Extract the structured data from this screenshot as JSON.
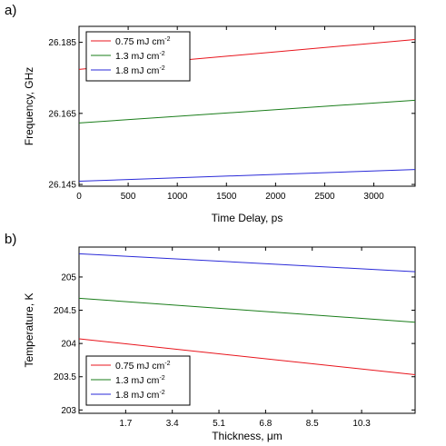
{
  "chart_data": [
    {
      "panel_label": "a)",
      "type": "line",
      "xlabel": "Time Delay, ps",
      "ylabel": "Frequency, GHz",
      "xlim": [
        0,
        3420
      ],
      "ylim": [
        26.1445,
        26.1895
      ],
      "x_ticks": [
        0,
        500,
        1000,
        1500,
        2000,
        2500,
        3000
      ],
      "x_tick_labels": [
        "0",
        "500",
        "1000",
        "1500",
        "2000",
        "2500",
        "3000"
      ],
      "y_ticks": [
        26.145,
        26.165,
        26.185
      ],
      "y_tick_labels": [
        "26.145",
        "26.165",
        "26.185"
      ],
      "grid": false,
      "legend_position": "top-left",
      "series": [
        {
          "name": "0.75 mJ cm",
          "name_superscript": "-2",
          "color": "#e8141c",
          "x": [
            0,
            3420
          ],
          "y": [
            26.1774,
            26.1858
          ]
        },
        {
          "name": "1.3 mJ cm",
          "name_superscript": "-2",
          "color": "#1a7d1a",
          "x": [
            0,
            3420
          ],
          "y": [
            26.1623,
            26.1687
          ]
        },
        {
          "name": "1.8 mJ cm",
          "name_superscript": "-2",
          "color": "#2a2ad8",
          "x": [
            0,
            3420
          ],
          "y": [
            26.1459,
            26.1492
          ]
        }
      ]
    },
    {
      "panel_label": "b)",
      "type": "line",
      "xlabel": "Thickness, μm",
      "ylabel": "Temperature, K",
      "xlim": [
        0,
        12.25
      ],
      "ylim": [
        202.95,
        205.45
      ],
      "x_ticks": [
        1.7,
        3.4,
        5.1,
        6.8,
        8.5,
        10.3
      ],
      "x_tick_labels": [
        "1.7",
        "3.4",
        "5.1",
        "6.8",
        "8.5",
        "10.3"
      ],
      "y_ticks": [
        203,
        203.5,
        204,
        204.5,
        205
      ],
      "y_tick_labels": [
        "203",
        "203.5",
        "204",
        "204.5",
        "205"
      ],
      "grid": false,
      "legend_position": "bottom-left",
      "series": [
        {
          "name": "0.75 mJ cm",
          "name_superscript": "-2",
          "color": "#e8141c",
          "x": [
            0,
            12.25
          ],
          "y": [
            204.07,
            203.53
          ]
        },
        {
          "name": "1.3 mJ cm",
          "name_superscript": "-2",
          "color": "#1a7d1a",
          "x": [
            0,
            12.25
          ],
          "y": [
            204.68,
            204.32
          ]
        },
        {
          "name": "1.8 mJ cm",
          "name_superscript": "-2",
          "color": "#2a2ad8",
          "x": [
            0,
            12.25
          ],
          "y": [
            205.35,
            205.08
          ]
        }
      ]
    }
  ]
}
